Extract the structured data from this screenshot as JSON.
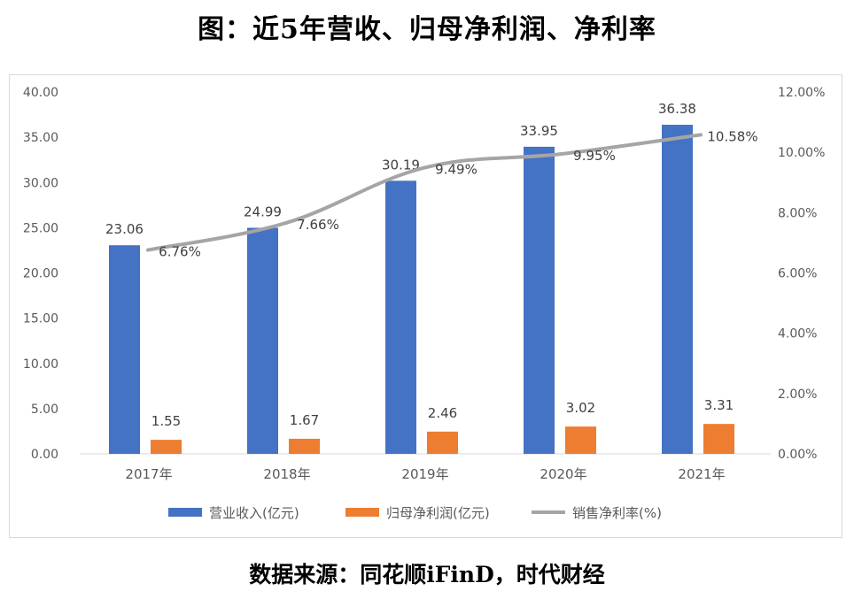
{
  "title": "图：近5年营收、归母净利润、净利率",
  "source": "数据来源：同花顺iFinD，时代财经",
  "colors": {
    "revenue": "#4472C4",
    "profit": "#ED7D31",
    "margin": "#A5A5A5",
    "axis_text": "#595959",
    "frame": "#D9D9D9"
  },
  "chart_data": {
    "type": "bar",
    "categories": [
      "2017年",
      "2018年",
      "2019年",
      "2020年",
      "2021年"
    ],
    "series": [
      {
        "name": "营业收入(亿元)",
        "type": "bar",
        "axis": "left",
        "values": [
          23.06,
          24.99,
          30.19,
          33.95,
          36.38
        ],
        "labels": [
          "23.06",
          "24.99",
          "30.19",
          "33.95",
          "36.38"
        ]
      },
      {
        "name": "归母净利润(亿元)",
        "type": "bar",
        "axis": "left",
        "values": [
          1.55,
          1.67,
          2.46,
          3.02,
          3.31
        ],
        "labels": [
          "1.55",
          "1.67",
          "2.46",
          "3.02",
          "3.31"
        ]
      },
      {
        "name": "销售净利率(%)",
        "type": "line",
        "axis": "right",
        "values": [
          6.76,
          7.66,
          9.49,
          9.95,
          10.58
        ],
        "labels": [
          "6.76%",
          "7.66%",
          "9.49%",
          "9.95%",
          "10.58%"
        ]
      }
    ],
    "left_axis": {
      "ylim": [
        0,
        40
      ],
      "ticks": [
        "0.00",
        "5.00",
        "10.00",
        "15.00",
        "20.00",
        "25.00",
        "30.00",
        "35.00",
        "40.00"
      ]
    },
    "right_axis": {
      "ylim": [
        0,
        12
      ],
      "ticks": [
        "0.00%",
        "2.00%",
        "4.00%",
        "6.00%",
        "8.00%",
        "10.00%",
        "12.00%"
      ]
    },
    "grid": false,
    "legend": "bottom"
  }
}
